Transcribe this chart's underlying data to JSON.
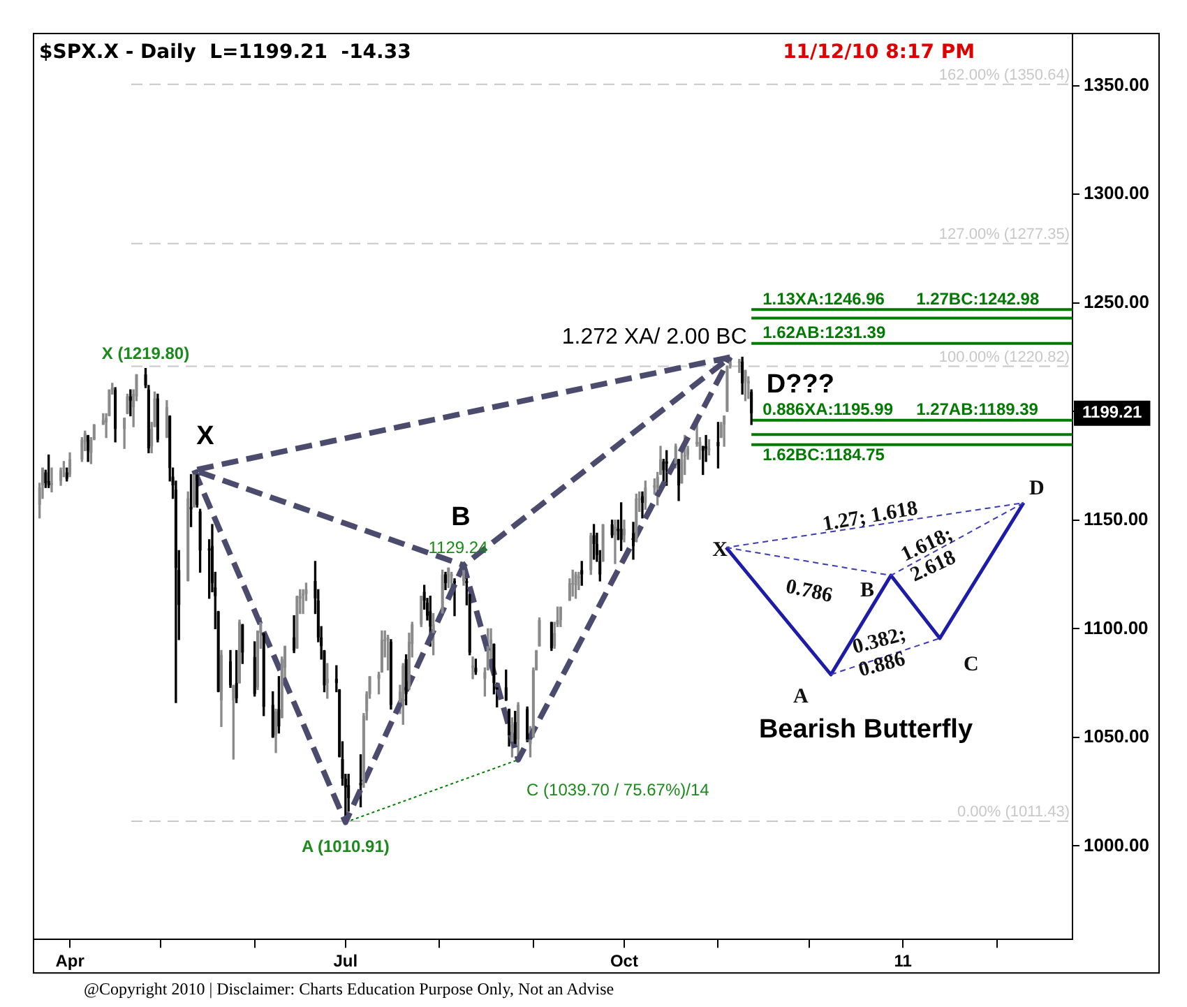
{
  "chart_data": {
    "type": "candlestick",
    "title": "$SPX.X - Daily  L=1199.21  -14.33",
    "x": [
      "2010-03-22",
      "2010-03-23",
      "2010-03-24",
      "2010-03-25",
      "2010-03-26",
      "2010-03-29",
      "2010-03-30",
      "2010-03-31",
      "2010-04-01",
      "2010-04-05",
      "2010-04-06",
      "2010-04-07",
      "2010-04-08",
      "2010-04-09",
      "2010-04-12",
      "2010-04-13",
      "2010-04-14",
      "2010-04-15",
      "2010-04-16",
      "2010-04-19",
      "2010-04-20",
      "2010-04-21",
      "2010-04-22",
      "2010-04-23",
      "2010-04-26",
      "2010-04-27",
      "2010-04-28",
      "2010-04-29",
      "2010-04-30",
      "2010-05-03",
      "2010-05-04",
      "2010-05-05",
      "2010-05-06",
      "2010-05-07",
      "2010-05-10",
      "2010-05-11",
      "2010-05-12",
      "2010-05-13",
      "2010-05-14",
      "2010-05-17",
      "2010-05-18",
      "2010-05-19",
      "2010-05-20",
      "2010-05-21",
      "2010-05-24",
      "2010-05-25",
      "2010-05-26",
      "2010-05-27",
      "2010-05-28",
      "2010-06-01",
      "2010-06-02",
      "2010-06-03",
      "2010-06-04",
      "2010-06-07",
      "2010-06-08",
      "2010-06-09",
      "2010-06-10",
      "2010-06-11",
      "2010-06-14",
      "2010-06-15",
      "2010-06-16",
      "2010-06-17",
      "2010-06-18",
      "2010-06-21",
      "2010-06-22",
      "2010-06-23",
      "2010-06-24",
      "2010-06-25",
      "2010-06-28",
      "2010-06-29",
      "2010-06-30",
      "2010-07-01",
      "2010-07-02",
      "2010-07-06",
      "2010-07-07",
      "2010-07-08",
      "2010-07-09",
      "2010-07-12",
      "2010-07-13",
      "2010-07-14",
      "2010-07-15",
      "2010-07-16",
      "2010-07-19",
      "2010-07-20",
      "2010-07-21",
      "2010-07-22",
      "2010-07-23",
      "2010-07-26",
      "2010-07-27",
      "2010-07-28",
      "2010-07-29",
      "2010-07-30",
      "2010-08-02",
      "2010-08-03",
      "2010-08-04",
      "2010-08-05",
      "2010-08-06",
      "2010-08-09",
      "2010-08-10",
      "2010-08-11",
      "2010-08-12",
      "2010-08-13",
      "2010-08-16",
      "2010-08-17",
      "2010-08-18",
      "2010-08-19",
      "2010-08-20",
      "2010-08-23",
      "2010-08-24",
      "2010-08-25",
      "2010-08-26",
      "2010-08-27",
      "2010-08-30",
      "2010-08-31",
      "2010-09-01",
      "2010-09-02",
      "2010-09-03",
      "2010-09-07",
      "2010-09-08",
      "2010-09-09",
      "2010-09-10",
      "2010-09-13",
      "2010-09-14",
      "2010-09-15",
      "2010-09-16",
      "2010-09-17",
      "2010-09-20",
      "2010-09-21",
      "2010-09-22",
      "2010-09-23",
      "2010-09-24",
      "2010-09-27",
      "2010-09-28",
      "2010-09-29",
      "2010-09-30",
      "2010-10-01",
      "2010-10-04",
      "2010-10-05",
      "2010-10-06",
      "2010-10-07",
      "2010-10-08",
      "2010-10-11",
      "2010-10-12",
      "2010-10-13",
      "2010-10-14",
      "2010-10-15",
      "2010-10-18",
      "2010-10-19",
      "2010-10-20",
      "2010-10-21",
      "2010-10-22",
      "2010-10-25",
      "2010-10-26",
      "2010-10-27",
      "2010-10-28",
      "2010-10-29",
      "2010-11-01",
      "2010-11-02",
      "2010-11-03",
      "2010-11-04",
      "2010-11-05",
      "2010-11-08",
      "2010-11-09",
      "2010-11-10",
      "2010-11-11",
      "2010-11-12"
    ],
    "ohlc": [
      [
        1157,
        1167,
        1151,
        1165
      ],
      [
        1166,
        1174,
        1160,
        1174
      ],
      [
        1172,
        1173,
        1165,
        1167
      ],
      [
        1168,
        1180,
        1165,
        1166
      ],
      [
        1167,
        1174,
        1163,
        1167
      ],
      [
        1168,
        1174,
        1166,
        1173
      ],
      [
        1174,
        1177,
        1170,
        1174
      ],
      [
        1172,
        1174,
        1168,
        1169
      ],
      [
        1171,
        1181,
        1170,
        1178
      ],
      [
        1178,
        1188,
        1177,
        1187
      ],
      [
        1186,
        1191,
        1182,
        1190
      ],
      [
        1189,
        1189,
        1177,
        1182
      ],
      [
        1181,
        1188,
        1176,
        1187
      ],
      [
        1187,
        1194,
        1187,
        1194
      ],
      [
        1194,
        1199,
        1194,
        1196
      ],
      [
        1195,
        1199,
        1188,
        1197
      ],
      [
        1198,
        1210,
        1198,
        1210
      ],
      [
        1210,
        1213,
        1208,
        1211
      ],
      [
        1210,
        1211,
        1186,
        1192
      ],
      [
        1192,
        1197,
        1183,
        1197
      ],
      [
        1199,
        1208,
        1199,
        1207
      ],
      [
        1207,
        1210,
        1198,
        1205
      ],
      [
        1202,
        1210,
        1193,
        1208
      ],
      [
        1207,
        1217,
        1205,
        1217
      ],
      [
        1217,
        1219.8,
        1211,
        1212
      ],
      [
        1210,
        1212,
        1181,
        1183
      ],
      [
        1184,
        1195,
        1181,
        1192
      ],
      [
        1193,
        1209,
        1193,
        1206
      ],
      [
        1206,
        1208,
        1186,
        1187
      ],
      [
        1188,
        1205,
        1188,
        1202
      ],
      [
        1198,
        1198,
        1168,
        1174
      ],
      [
        1170,
        1174,
        1160,
        1166
      ],
      [
        1164,
        1168,
        1066,
        1128
      ],
      [
        1127,
        1136,
        1095,
        1111
      ],
      [
        1122,
        1163,
        1122,
        1160
      ],
      [
        1156,
        1171,
        1147,
        1155
      ],
      [
        1156,
        1172,
        1156,
        1171
      ],
      [
        1171,
        1173,
        1156,
        1157
      ],
      [
        1154,
        1155,
        1126,
        1136
      ],
      [
        1137,
        1141,
        1114,
        1136
      ],
      [
        1138,
        1148,
        1117,
        1121
      ],
      [
        1119,
        1126,
        1100,
        1115
      ],
      [
        1108,
        1108,
        1071,
        1071
      ],
      [
        1067,
        1090,
        1055,
        1088
      ],
      [
        1085,
        1090,
        1073,
        1074
      ],
      [
        1067,
        1074,
        1040,
        1074
      ],
      [
        1075,
        1090,
        1066,
        1068
      ],
      [
        1075,
        1104,
        1075,
        1103
      ],
      [
        1102,
        1102,
        1084,
        1089
      ],
      [
        1087,
        1094,
        1069,
        1070
      ],
      [
        1073,
        1099,
        1072,
        1099
      ],
      [
        1098,
        1105,
        1091,
        1103
      ],
      [
        1098,
        1098,
        1060,
        1064
      ],
      [
        1065,
        1071,
        1050,
        1050
      ],
      [
        1051,
        1063,
        1043,
        1062
      ],
      [
        1063,
        1078,
        1052,
        1055
      ],
      [
        1059,
        1087,
        1059,
        1086
      ],
      [
        1082,
        1092,
        1077,
        1092
      ],
      [
        1096,
        1106,
        1089,
        1090
      ],
      [
        1091,
        1115,
        1091,
        1115
      ],
      [
        1114,
        1118,
        1107,
        1115
      ],
      [
        1116,
        1118,
        1107,
        1116
      ],
      [
        1116,
        1121,
        1113,
        1118
      ],
      [
        1122,
        1131,
        1107,
        1114
      ],
      [
        1113,
        1118,
        1094,
        1096
      ],
      [
        1096,
        1101,
        1086,
        1092
      ],
      [
        1090,
        1090,
        1071,
        1074
      ],
      [
        1075,
        1084,
        1068,
        1077
      ],
      [
        1077,
        1083,
        1071,
        1075
      ],
      [
        1072,
        1072,
        1041,
        1041
      ],
      [
        1040,
        1048,
        1028,
        1031
      ],
      [
        1031,
        1033,
        1010.91,
        1027
      ],
      [
        1028,
        1033,
        1016,
        1022
      ],
      [
        1029,
        1042,
        1018,
        1028
      ],
      [
        1029,
        1061,
        1027,
        1060
      ],
      [
        1062,
        1071,
        1058,
        1070
      ],
      [
        1070,
        1078,
        1068,
        1078
      ],
      [
        1077,
        1080,
        1070,
        1079
      ],
      [
        1080,
        1099,
        1080,
        1095
      ],
      [
        1095,
        1099,
        1087,
        1095
      ],
      [
        1095,
        1097,
        1081,
        1096
      ],
      [
        1094,
        1095,
        1063,
        1065
      ],
      [
        1066,
        1074,
        1061,
        1071
      ],
      [
        1065,
        1084,
        1056,
        1083
      ],
      [
        1086,
        1088,
        1065,
        1070
      ],
      [
        1072,
        1098,
        1072,
        1094
      ],
      [
        1093,
        1103,
        1087,
        1102
      ],
      [
        1102,
        1115,
        1101,
        1115
      ],
      [
        1117,
        1120,
        1109,
        1113
      ],
      [
        1112,
        1114,
        1104,
        1106
      ],
      [
        1108,
        1115,
        1092,
        1101
      ],
      [
        1098,
        1107,
        1088,
        1102
      ],
      [
        1107,
        1127,
        1107,
        1125
      ],
      [
        1125,
        1126,
        1118,
        1121
      ],
      [
        1121,
        1128,
        1119,
        1128
      ],
      [
        1125,
        1126,
        1118,
        1125
      ],
      [
        1122,
        1123,
        1106,
        1121
      ],
      [
        1122,
        1129.24,
        1120,
        1127
      ],
      [
        1122,
        1127,
        1111,
        1121
      ],
      [
        1116,
        1116,
        1088,
        1089
      ],
      [
        1082,
        1087,
        1077,
        1083
      ],
      [
        1082,
        1086,
        1079,
        1080
      ],
      [
        1077,
        1082,
        1069,
        1080
      ],
      [
        1081,
        1100,
        1081,
        1092
      ],
      [
        1093,
        1100,
        1086,
        1095
      ],
      [
        1093,
        1093,
        1070,
        1075
      ],
      [
        1073,
        1075,
        1064,
        1072
      ],
      [
        1073,
        1081,
        1067,
        1067
      ],
      [
        1063,
        1063,
        1046,
        1051
      ],
      [
        1048,
        1059,
        1041,
        1056
      ],
      [
        1057,
        1062,
        1046,
        1047
      ],
      [
        1049,
        1066,
        1039.7,
        1065
      ],
      [
        1063,
        1064,
        1048,
        1049
      ],
      [
        1047,
        1055,
        1041,
        1049
      ],
      [
        1050,
        1082,
        1050,
        1081
      ],
      [
        1081,
        1090,
        1081,
        1090
      ],
      [
        1092,
        1105,
        1092,
        1104
      ],
      [
        1103,
        1103,
        1090,
        1091
      ],
      [
        1092,
        1103,
        1091,
        1098
      ],
      [
        1102,
        1110,
        1101,
        1104
      ],
      [
        1104,
        1110,
        1101,
        1110
      ],
      [
        1113,
        1123,
        1113,
        1121
      ],
      [
        1121,
        1127,
        1115,
        1121
      ],
      [
        1120,
        1126,
        1114,
        1125
      ],
      [
        1124,
        1126,
        1118,
        1124
      ],
      [
        1127,
        1131,
        1120,
        1125
      ],
      [
        1127,
        1144,
        1125,
        1143
      ],
      [
        1143,
        1148,
        1132,
        1139
      ],
      [
        1139,
        1144,
        1131,
        1134
      ],
      [
        1131,
        1136,
        1122,
        1125
      ],
      [
        1131,
        1148,
        1131,
        1148
      ],
      [
        1148,
        1150,
        1142,
        1143
      ],
      [
        1143,
        1150,
        1130,
        1147
      ],
      [
        1146,
        1150,
        1141,
        1145
      ],
      [
        1146,
        1158,
        1136,
        1141
      ],
      [
        1143,
        1150,
        1140,
        1146
      ],
      [
        1144,
        1149,
        1132,
        1138
      ],
      [
        1140,
        1162,
        1140,
        1160
      ],
      [
        1160,
        1163,
        1154,
        1160
      ],
      [
        1161,
        1163,
        1151,
        1158
      ],
      [
        1158,
        1168,
        1155,
        1165
      ],
      [
        1165,
        1169,
        1162,
        1166
      ],
      [
        1164,
        1172,
        1157,
        1170
      ],
      [
        1171,
        1184,
        1171,
        1178
      ],
      [
        1177,
        1178,
        1166,
        1173
      ],
      [
        1177,
        1182,
        1166,
        1176
      ],
      [
        1176,
        1185,
        1174,
        1184
      ],
      [
        1178,
        1178,
        1159,
        1166
      ],
      [
        1167,
        1182,
        1167,
        1178
      ],
      [
        1180,
        1189,
        1171,
        1180
      ],
      [
        1180,
        1184,
        1178,
        1183
      ],
      [
        1185,
        1196,
        1184,
        1186
      ],
      [
        1184,
        1188,
        1178,
        1186
      ],
      [
        1184,
        1184,
        1171,
        1182
      ],
      [
        1184,
        1189,
        1177,
        1183
      ],
      [
        1183,
        1187,
        1180,
        1183
      ],
      [
        1186,
        1195,
        1174,
        1184
      ],
      [
        1188,
        1195,
        1188,
        1194
      ],
      [
        1194,
        1198,
        1184,
        1198
      ],
      [
        1200,
        1221,
        1200,
        1221
      ],
      [
        1221,
        1225,
        1220,
        1223
      ],
      [
        1223,
        1224,
        1218,
        1223
      ],
      [
        1223,
        1225,
        1208,
        1213
      ],
      [
        1214,
        1219,
        1205,
        1219
      ],
      [
        1213,
        1216,
        1206,
        1214
      ],
      [
        1209,
        1210,
        1194,
        1199.21
      ]
    ],
    "series": [
      {
        "type": "line",
        "x": [
          "2010-05-12",
          "2010-07-01",
          "2010-08-09",
          "2010-05-12",
          "2010-11-05",
          "2010-08-09",
          "2010-08-27",
          "2010-11-05"
        ],
        "values": [
          1173,
          1010.91,
          1129.24,
          1173,
          1225,
          1129.24,
          1039.7,
          1225
        ],
        "color": "#4b4b6e",
        "line_style": "dashed"
      },
      {
        "type": "line",
        "x": [
          "2010-07-01",
          "2010-08-27"
        ],
        "values": [
          1010.91,
          1039.7
        ],
        "color": "#008000",
        "line_style": "dotted"
      }
    ],
    "marker": "none",
    "xlim": [
      "2010-03-20",
      "2011-02-26"
    ],
    "xticks": [
      {
        "value": "2010-04-01",
        "label": "Apr"
      },
      {
        "value": "2010-05-01",
        "label": null
      },
      {
        "value": "2010-06-01",
        "label": null
      },
      {
        "value": "2010-07-01",
        "label": "Jul"
      },
      {
        "value": "2010-08-01",
        "label": null
      },
      {
        "value": "2010-09-01",
        "label": null
      },
      {
        "value": "2010-10-01",
        "label": "Oct"
      },
      {
        "value": "2010-11-01",
        "label": null
      },
      {
        "value": "2010-12-01",
        "label": null
      },
      {
        "value": "2011-01-01",
        "label": "11"
      },
      {
        "value": "2011-02-01",
        "label": null
      }
    ],
    "ylim": [
      957,
      1374
    ],
    "yticks": [
      {
        "value": 1000,
        "label": "1000.00"
      },
      {
        "value": 1050,
        "label": "1050.00"
      },
      {
        "value": 1100,
        "label": "1100.00"
      },
      {
        "value": 1150,
        "label": "1150.00"
      },
      {
        "value": 1200,
        "label": null
      },
      {
        "value": 1250,
        "label": "1250.00"
      },
      {
        "value": 1300,
        "label": "1300.00"
      },
      {
        "value": 1350,
        "label": "1350.00"
      }
    ],
    "ref_lines": [
      {
        "axis": "y",
        "value": 1350.64,
        "label": "162.00% (1350.64)",
        "color": "#c8c8c8",
        "line_style": "dashed"
      },
      {
        "axis": "y",
        "value": 1277.35,
        "label": "127.00% (1277.35)",
        "color": "#c8c8c8",
        "line_style": "dashed"
      },
      {
        "axis": "y",
        "value": 1220.82,
        "label": "100.00% (1220.82)",
        "color": "#c8c8c8",
        "line_style": "dashed"
      },
      {
        "axis": "y",
        "value": 1011.43,
        "label": "0.00% (1011.43)",
        "color": "#c8c8c8",
        "line_style": "dashed"
      },
      {
        "axis": "y",
        "value": 1246.96,
        "label": "1.13XA:1246.96",
        "color": "#007a00",
        "line_style": "solid"
      },
      {
        "axis": "y",
        "value": 1242.98,
        "label": "1.27BC:1242.98",
        "color": "#007a00",
        "line_style": "solid"
      },
      {
        "axis": "y",
        "value": 1231.39,
        "label": "1.62AB:1231.39",
        "color": "#007a00",
        "line_style": "solid"
      },
      {
        "axis": "y",
        "value": 1195.99,
        "label": "0.886XA:1195.99",
        "color": "#007a00",
        "line_style": "solid"
      },
      {
        "axis": "y",
        "value": 1189.39,
        "label": "1.27AB:1189.39",
        "color": "#007a00",
        "line_style": "solid"
      },
      {
        "axis": "y",
        "value": 1184.75,
        "label": "1.62BC:1184.75",
        "color": "#007a00",
        "line_style": "solid"
      }
    ],
    "annotations": [
      {
        "text": "X (1219.80)",
        "x": "2010-04-26",
        "y": 1219.8
      },
      {
        "text": "X",
        "x": "2010-05-12",
        "y": 1173
      },
      {
        "text": "A (1010.91)",
        "x": "2010-07-01",
        "y": 1010.91
      },
      {
        "text": "B",
        "x": "2010-08-09",
        "y": 1129.24
      },
      {
        "text": "1129.24",
        "x": "2010-08-09",
        "y": 1129.24
      },
      {
        "text": "C (1039.70 / 75.67%)/14",
        "x": "2010-08-27",
        "y": 1039.7
      },
      {
        "text": "D???",
        "x": "2010-11-05",
        "y": 1225
      },
      {
        "text": "1.272 XA/ 2.00 BC",
        "x": "2010-11-05",
        "y": 1225
      },
      "11/12/10 8:17 PM",
      "@Copyright 2010 | Disclaimer: Charts Education Purpose Only, Not an Advise",
      "1199.21",
      "X",
      "A",
      "B",
      "C",
      "D",
      "0.786",
      "1.27; 1.618",
      "1.618; 2.618",
      "0.382; 0.886",
      "Bearish Butterfly"
    ],
    "grid": false,
    "legend": false
  }
}
